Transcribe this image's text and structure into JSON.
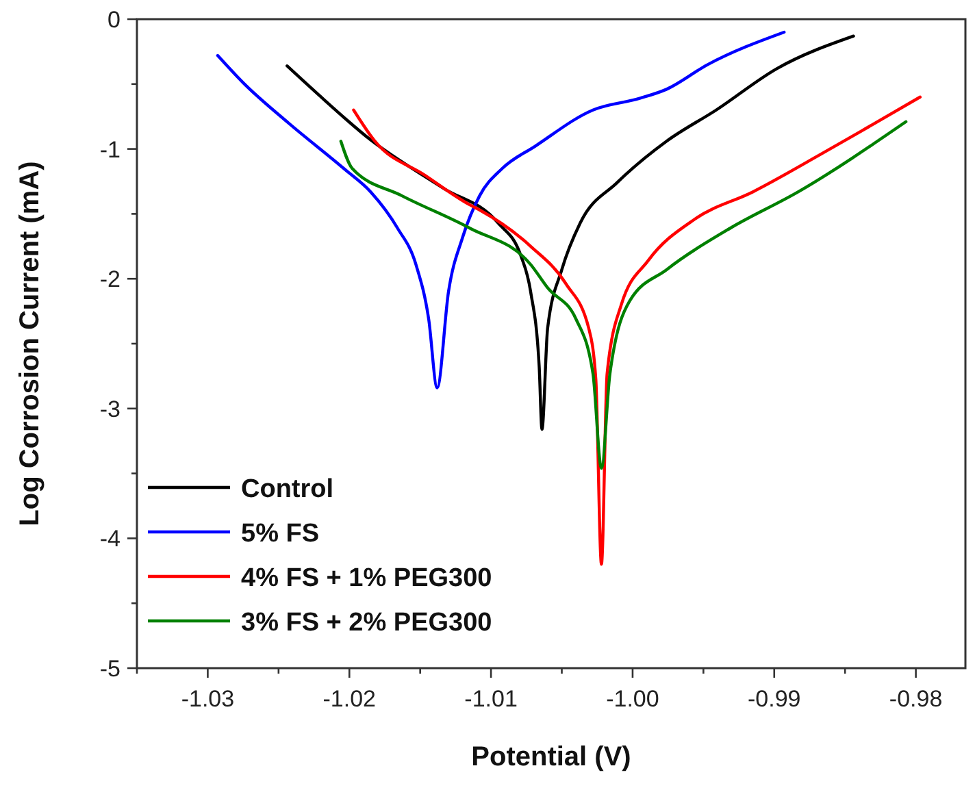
{
  "chart_data": {
    "type": "line",
    "xlabel": "Potential (V)",
    "ylabel": "Log Corrosion Current (mA)",
    "xlim": [
      -1.035,
      -0.9765
    ],
    "ylim": [
      -5,
      0
    ],
    "xticks": [
      {
        "value": -1.035,
        "label": null
      },
      -1.03,
      {
        "value": -1.025,
        "label": null
      },
      -1.02,
      {
        "value": -1.015,
        "label": null
      },
      -1.01,
      {
        "value": -1.005,
        "label": null
      },
      {
        "value": -1.0,
        "label": "-1.00"
      },
      {
        "value": -0.995,
        "label": null
      },
      -0.99,
      {
        "value": -0.985,
        "label": null
      },
      -0.98
    ],
    "yticks": [
      -5,
      {
        "value": -4.5,
        "label": null
      },
      -4,
      {
        "value": -3.5,
        "label": null
      },
      -3,
      {
        "value": -2.5,
        "label": null
      },
      -2,
      {
        "value": -1.5,
        "label": null
      },
      -1,
      {
        "value": -0.5,
        "label": null
      },
      0
    ],
    "legend": "bottom left",
    "grid": false,
    "line_style": "solid",
    "series": [
      {
        "name": "Control",
        "color": "#000000",
        "x": [
          -1.0244,
          -1.0224,
          -1.0185,
          -1.0134,
          -1.0095,
          -1.0079,
          -1.0072,
          -1.0066,
          -1.0064,
          -1.006,
          -1.005,
          -1.0037,
          -1.0011,
          -0.9976,
          -0.9941,
          -0.9898,
          -0.9844
        ],
        "values": [
          -0.36,
          -0.56,
          -0.93,
          -1.3,
          -1.57,
          -1.82,
          -2.1,
          -2.67,
          -3.16,
          -2.38,
          -1.93,
          -1.57,
          -1.26,
          -0.94,
          -0.7,
          -0.38,
          -0.13
        ]
      },
      {
        "name": "5% FS",
        "color": "#0000ff",
        "x": [
          -1.0293,
          -1.0275,
          -1.0243,
          -1.0204,
          -1.0185,
          -1.0166,
          -1.0153,
          -1.0144,
          -1.0138,
          -1.013,
          -1.012,
          -1.0108,
          -1.0092,
          -1.0069,
          -1.0028,
          -0.9995,
          -0.9976,
          -0.9947,
          -0.9893
        ],
        "values": [
          -0.28,
          -0.49,
          -0.8,
          -1.15,
          -1.33,
          -1.61,
          -1.89,
          -2.31,
          -2.84,
          -2.1,
          -1.68,
          -1.36,
          -1.15,
          -0.98,
          -0.7,
          -0.61,
          -0.54,
          -0.35,
          -0.1
        ]
      },
      {
        "name": "4% FS + 1% PEG300",
        "color": "#ff0000",
        "x": [
          -1.0197,
          -1.0182,
          -1.0147,
          -1.0115,
          -1.0108,
          -1.0072,
          -1.0047,
          -1.0031,
          -1.0026,
          -1.0022,
          -1.0018,
          -1.0008,
          -0.9989,
          -0.9956,
          -0.9915,
          -0.9867,
          -0.9835,
          -0.9797
        ],
        "values": [
          -0.7,
          -0.94,
          -1.2,
          -1.43,
          -1.47,
          -1.75,
          -2.04,
          -2.38,
          -2.77,
          -4.2,
          -2.73,
          -2.2,
          -1.86,
          -1.54,
          -1.33,
          -1.04,
          -0.84,
          -0.6
        ]
      },
      {
        "name": "3% FS + 2% PEG300",
        "color": "#008000",
        "x": [
          -1.0206,
          -1.0198,
          -1.0163,
          -1.0115,
          -1.0072,
          -1.006,
          -1.004,
          -1.0028,
          -1.0022,
          -1.0016,
          -1.0002,
          -0.9976,
          -0.9931,
          -0.9883,
          -0.9807
        ],
        "values": [
          -0.94,
          -1.15,
          -1.36,
          -1.61,
          -1.89,
          -2.07,
          -2.31,
          -2.73,
          -3.46,
          -2.73,
          -2.17,
          -1.93,
          -1.61,
          -1.33,
          -0.79
        ]
      }
    ]
  }
}
